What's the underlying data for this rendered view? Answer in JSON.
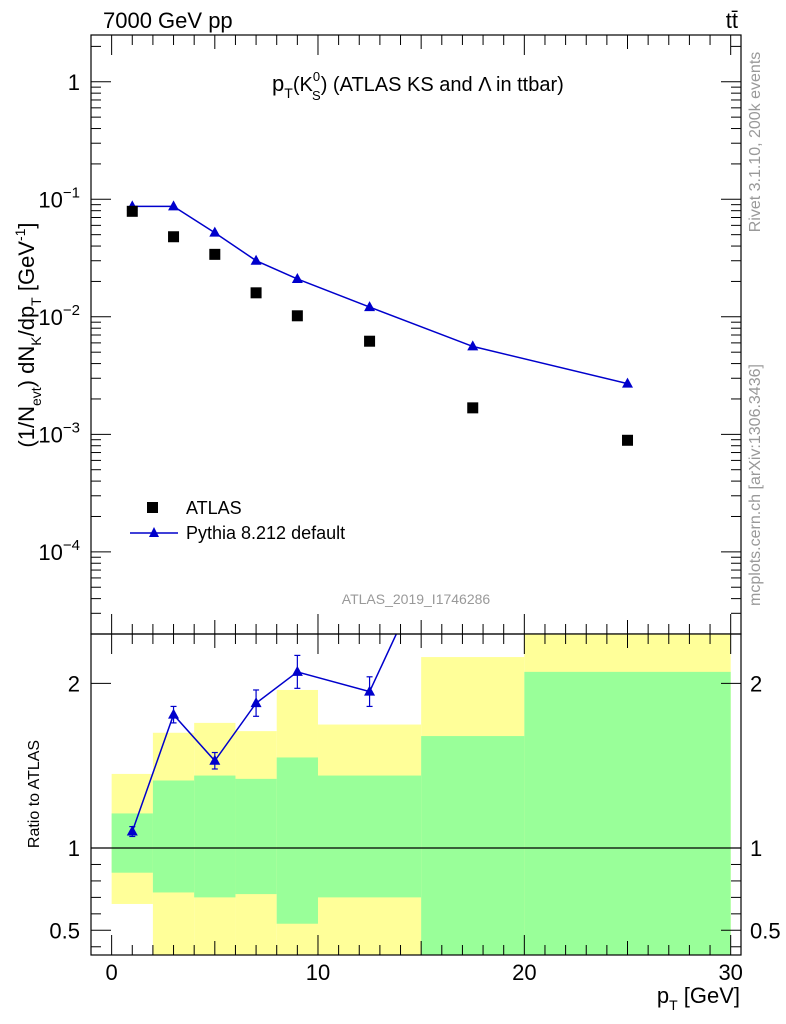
{
  "header": {
    "left": "7000 GeV pp",
    "right": "tt̄"
  },
  "side_labels": {
    "upper": "Rivet 3.1.10,  200k events",
    "lower": "mcplots.cern.ch [arXiv:1306.3436]"
  },
  "watermark": "ATLAS_2019_I1746286",
  "colors": {
    "mc": "#0000cc",
    "band_outer": "#ffff99",
    "band_inner": "#99ff99",
    "data": "#000000"
  },
  "chart_data": [
    {
      "type": "scatter",
      "title": "p_T(K_S^0) (ATLAS KS and Λ in ttbar)",
      "title_parts": {
        "p": "p",
        "T": "T",
        "K": "(K",
        "zero": "0",
        "S": "S",
        "rest": ") (ATLAS KS and Λ in ttbar)"
      },
      "ylabel_parts": {
        "a": "(1/N",
        "evt": "evt",
        "b": ") dN",
        "K": "K",
        "c": "/dp",
        "T": "T",
        "d": " [GeV",
        "m1": "-1",
        "e": "]"
      },
      "yscale": "log",
      "ylim": [
        2e-05,
        2.5
      ],
      "xlim": [
        -1,
        30.5
      ],
      "y_ticks": [
        {
          "value": 1,
          "base": "1",
          "exp": ""
        },
        {
          "value": 0.1,
          "base": "10",
          "exp": "−1"
        },
        {
          "value": 0.01,
          "base": "10",
          "exp": "−2"
        },
        {
          "value": 0.001,
          "base": "10",
          "exp": "−3"
        },
        {
          "value": 0.0001,
          "base": "10",
          "exp": "−4"
        }
      ],
      "legend_position": "lower-left",
      "series": [
        {
          "name": "ATLAS",
          "marker": "square",
          "x": [
            1,
            3,
            5,
            7,
            9,
            12.5,
            17.5,
            25
          ],
          "y": [
            0.079,
            0.048,
            0.034,
            0.016,
            0.0102,
            0.0062,
            0.00168,
            0.00089
          ]
        },
        {
          "name": "Pythia 8.212 default",
          "marker": "triangle",
          "x": [
            1,
            3,
            5,
            7,
            9,
            12.5,
            17.5,
            25
          ],
          "y": [
            0.087,
            0.087,
            0.052,
            0.03,
            0.021,
            0.0121,
            0.0056,
            0.0027
          ]
        }
      ]
    },
    {
      "type": "line",
      "ylabel": "Ratio to ATLAS",
      "xlabel": "p_T [GeV]",
      "xlabel_parts": {
        "p": "p",
        "T": "T",
        "unit": " [GeV]"
      },
      "xlim": [
        -1,
        30.5
      ],
      "ylim": [
        0.35,
        2.3
      ],
      "x_ticks": [
        0,
        10,
        20,
        30
      ],
      "y_ticks": [
        0.5,
        1,
        2
      ],
      "y_tick_labels": [
        "0.5",
        "1",
        "2"
      ],
      "reference_line": 1,
      "bins": [
        {
          "lo": 0,
          "hi": 2,
          "outer": [
            0.66,
            1.45
          ],
          "inner": [
            0.85,
            1.21
          ]
        },
        {
          "lo": 2,
          "hi": 4,
          "outer": [
            0.35,
            1.7
          ],
          "inner": [
            0.73,
            1.41
          ]
        },
        {
          "lo": 4,
          "hi": 6,
          "outer": [
            0.35,
            1.76
          ],
          "inner": [
            0.7,
            1.44
          ]
        },
        {
          "lo": 6,
          "hi": 8,
          "outer": [
            0.35,
            1.71
          ],
          "inner": [
            0.72,
            1.42
          ]
        },
        {
          "lo": 8,
          "hi": 10,
          "outer": [
            0.35,
            1.96
          ],
          "inner": [
            0.54,
            1.55
          ]
        },
        {
          "lo": 10,
          "hi": 15,
          "outer": [
            0.35,
            1.75
          ],
          "inner": [
            0.7,
            1.44
          ]
        },
        {
          "lo": 15,
          "hi": 20,
          "outer": [
            0.35,
            2.16
          ],
          "inner": [
            0.35,
            1.68
          ]
        },
        {
          "lo": 20,
          "hi": 30,
          "outer": [
            0.35,
            2.3
          ],
          "inner": [
            0.35,
            2.07
          ]
        }
      ],
      "series": [
        {
          "name": "Pythia 8.212 default",
          "x": [
            1,
            3,
            5,
            7,
            9,
            12.5,
            17.5
          ],
          "y": [
            1.1,
            1.81,
            1.53,
            1.88,
            2.07,
            1.95,
            3.3
          ],
          "err": [
            0.03,
            0.05,
            0.05,
            0.08,
            0.1,
            0.09,
            0.2
          ]
        }
      ]
    }
  ]
}
